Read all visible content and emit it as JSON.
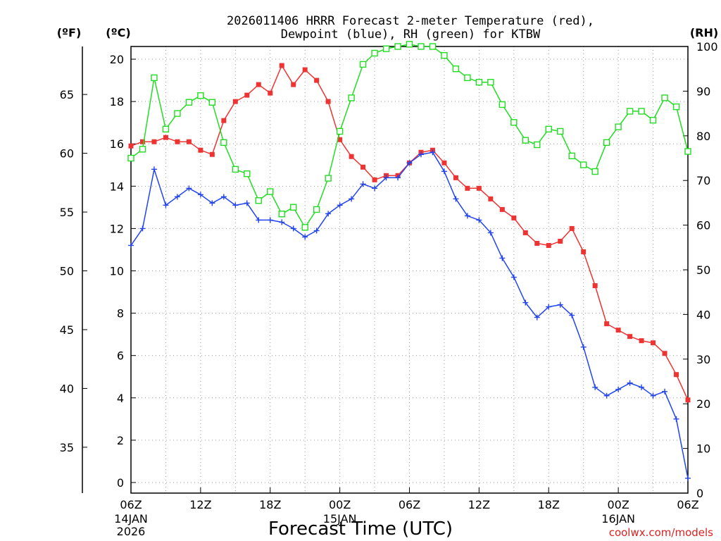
{
  "chart_data": {
    "type": "line",
    "title": [
      "2026011406 HRRR Forecast 2-meter Temperature (red),",
      "Dewpoint (blue), RH (green) for KTBW"
    ],
    "xlabel": "Forecast Time (UTC)",
    "credit": "coolwx.com/models",
    "unit_f": "(ºF)",
    "unit_c": "(ºC)",
    "unit_rh": "(RH)",
    "hours": [
      0,
      1,
      2,
      3,
      4,
      5,
      6,
      7,
      8,
      9,
      10,
      11,
      12,
      13,
      14,
      15,
      16,
      17,
      18,
      19,
      20,
      21,
      22,
      23,
      24,
      25,
      26,
      27,
      28,
      29,
      30,
      31,
      32,
      33,
      34,
      35,
      36,
      37,
      38,
      39,
      40,
      41,
      42,
      43,
      44,
      45,
      46,
      47,
      48
    ],
    "x_ticks": [
      {
        "hour": 0,
        "label": "06Z",
        "sub": [
          "14JAN",
          "2026"
        ]
      },
      {
        "hour": 6,
        "label": "12Z",
        "sub": []
      },
      {
        "hour": 12,
        "label": "18Z",
        "sub": []
      },
      {
        "hour": 18,
        "label": "00Z",
        "sub": [
          "15JAN"
        ]
      },
      {
        "hour": 24,
        "label": "06Z",
        "sub": []
      },
      {
        "hour": 30,
        "label": "12Z",
        "sub": []
      },
      {
        "hour": 36,
        "label": "18Z",
        "sub": []
      },
      {
        "hour": 42,
        "label": "00Z",
        "sub": [
          "16JAN"
        ]
      },
      {
        "hour": 48,
        "label": "06Z",
        "sub": []
      }
    ],
    "ylim_c": [
      -0.5,
      20.6
    ],
    "yticks_c": [
      0,
      2,
      4,
      6,
      8,
      10,
      12,
      14,
      16,
      18,
      20
    ],
    "yticks_f": [
      35,
      40,
      45,
      50,
      55,
      60,
      65
    ],
    "ylim_rh": [
      0,
      100
    ],
    "yticks_rh": [
      0,
      10,
      20,
      30,
      40,
      50,
      60,
      70,
      80,
      90,
      100
    ],
    "series": [
      {
        "name": "2-meter Temperature",
        "color": "#ee3333",
        "marker": "filled-square",
        "values": [
          15.9,
          16.1,
          16.1,
          16.3,
          16.1,
          16.1,
          15.7,
          15.5,
          17.1,
          18.0,
          18.3,
          18.8,
          18.4,
          19.7,
          18.8,
          19.5,
          19.0,
          18.0,
          16.2,
          15.4,
          14.9,
          14.3,
          14.5,
          14.5,
          15.1,
          15.6,
          15.7,
          15.1,
          14.4,
          13.9,
          13.9,
          13.4,
          12.9,
          12.5,
          11.8,
          11.3,
          11.2,
          11.4,
          12.0,
          10.9,
          9.3,
          7.5,
          7.2,
          6.9,
          6.7,
          6.6,
          6.1,
          5.1,
          3.9
        ]
      },
      {
        "name": "Dewpoint",
        "color": "#2244ee",
        "marker": "plus",
        "values": [
          11.2,
          12.0,
          14.8,
          13.1,
          13.5,
          13.9,
          13.6,
          13.2,
          13.5,
          13.1,
          13.2,
          12.4,
          12.4,
          12.3,
          12.0,
          11.6,
          11.9,
          12.7,
          13.1,
          13.4,
          14.1,
          13.9,
          14.4,
          14.4,
          15.1,
          15.5,
          15.6,
          14.7,
          13.4,
          12.6,
          12.4,
          11.8,
          10.6,
          9.7,
          8.5,
          7.8,
          8.3,
          8.4,
          7.9,
          6.4,
          4.5,
          4.1,
          4.4,
          4.7,
          4.5,
          4.1,
          4.3,
          3.0,
          0.2
        ]
      },
      {
        "name": "RH",
        "color": "#22dd22",
        "marker": "open-square",
        "values": [
          75.0,
          77.0,
          93.0,
          81.5,
          85.0,
          87.5,
          89.0,
          87.5,
          78.5,
          72.5,
          71.5,
          65.5,
          67.5,
          62.5,
          64.0,
          59.5,
          63.5,
          70.5,
          81.0,
          88.5,
          96.0,
          98.5,
          99.5,
          100.0,
          100.5,
          100.0,
          100.0,
          98.0,
          95.0,
          93.0,
          92.0,
          92.0,
          87.0,
          83.0,
          79.0,
          78.0,
          81.5,
          81.0,
          75.5,
          73.5,
          72.0,
          78.5,
          82.0,
          85.5,
          85.5,
          83.5,
          88.5,
          86.5,
          76.5
        ]
      }
    ]
  }
}
